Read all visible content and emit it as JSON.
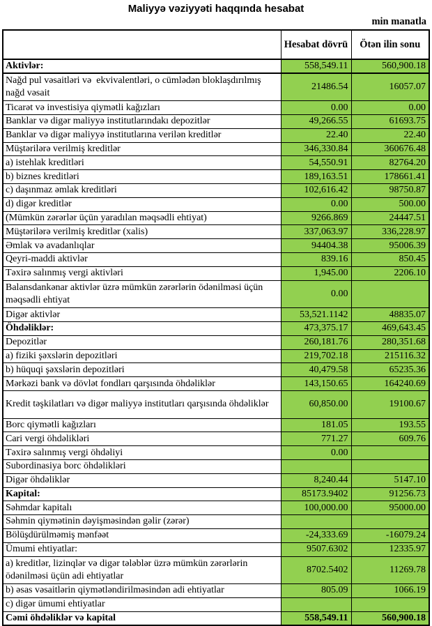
{
  "page": {
    "title": "Maliyyə vəziyyəti haqqında hesabat",
    "unit_note": "min manatla"
  },
  "table": {
    "columns": [
      "",
      "Hesabat dövrü",
      "Ötən ilin sonu"
    ],
    "colors": {
      "value_cell_bg": "#92d050",
      "border": "#000000"
    },
    "rows": [
      {
        "label": "Aktivlər:",
        "v1": "558,549.11",
        "v2": "560,900.18",
        "label_bold": true,
        "thick_bottom": true
      },
      {
        "label": "Nağd pul vəsaitləri və  ekvivalentləri, o cümlədən bloklaşdırılmış nağd vəsait",
        "v1": "21486.54",
        "v2": "16057.07",
        "tall": true
      },
      {
        "label": "Ticarət və investisiya qiymətli kağızları",
        "v1": "0.00",
        "v2": "0.00"
      },
      {
        "label": "Banklar və digər maliyyə institutlarındakı depozitlər",
        "v1": "49,266.55",
        "v2": "61693.75"
      },
      {
        "label": "Banklar və digər maliyyə institutlarına verilən kreditlər",
        "v1": "22.40",
        "v2": "22.40"
      },
      {
        "label": "Müştərilərə verilmiş kreditlər",
        "v1": "346,330.84",
        "v2": "360676.48"
      },
      {
        "label": "a) istehlak kreditləri",
        "v1": "54,550.91",
        "v2": "82764.20"
      },
      {
        "label": "b) biznes kreditləri",
        "v1": "189,163.51",
        "v2": "178661.41"
      },
      {
        "label": "c) daşınmaz əmlak kreditləri",
        "v1": "102,616.42",
        "v2": "98750.87"
      },
      {
        "label": "d) digər kreditlər",
        "v1": "0.00",
        "v2": "500.00"
      },
      {
        "label": "(Mümkün zərərlər üçün yaradılan məqsədli ehtiyat)",
        "v1": "9266.869",
        "v2": "24447.51"
      },
      {
        "label": "Müştərilərə verilmiş kreditlər (xalis)",
        "v1": "337,063.97",
        "v2": "336,228.97"
      },
      {
        "label": "Əmlak və avadanlıqlar",
        "v1": "94404.38",
        "v2": "95006.39"
      },
      {
        "label": "Qeyri-maddi aktivlər",
        "v1": "839.16",
        "v2": "850.45"
      },
      {
        "label": "Təxirə salınmış vergi aktivləri",
        "v1": "1,945.00",
        "v2": "2206.10"
      },
      {
        "label": "Balansdankənar aktivlər üzrə mümkün zərərlərin ödənilməsi üçün məqsədli ehtiyat",
        "v1": "0.00",
        "v2": "",
        "tall": true
      },
      {
        "label": "Digər aktivlər",
        "v1": "53,521.1142",
        "v2": "48835.07"
      },
      {
        "label": "Öhdəliklər:",
        "v1": "473,375.17",
        "v2": "469,643.45",
        "label_bold": true
      },
      {
        "label": "Depozitlər",
        "v1": "260,181.76",
        "v2": "280,351.68"
      },
      {
        "label": "a) fiziki şəxslərin depozitləri",
        "v1": "219,702.18",
        "v2": "215116.32"
      },
      {
        "label": "b) hüquqi şəxslərin depozitləri",
        "v1": "40,479.58",
        "v2": "65235.36"
      },
      {
        "label": "Mərkəzi bank və dövlət fondları qarşısında öhdəliklər",
        "v1": "143,150.65",
        "v2": "164240.69"
      },
      {
        "label": "Kredit təşkilatları və digər maliyyə institutları qarşısında öhdəliklər",
        "v1": "60,850.00",
        "v2": "19100.67",
        "tall": true
      },
      {
        "label": "Borc qiymətli kağızları",
        "v1": "181.05",
        "v2": "193.55"
      },
      {
        "label": "Cari vergi öhdəlikləri",
        "v1": "771.27",
        "v2": "609.76"
      },
      {
        "label": "Təxirə salınmış vergi öhdəliyi",
        "v1": "0.00",
        "v2": ""
      },
      {
        "label": "Subordinasiya borc öhdəlikləri",
        "v1": "",
        "v2": ""
      },
      {
        "label": "Digər öhdəliklər",
        "v1": "8,240.44",
        "v2": "5147.10"
      },
      {
        "label": "Kapital:",
        "v1": "85173.9402",
        "v2": "91256.73",
        "label_bold": true
      },
      {
        "label": "Səhmdar kapitalı",
        "v1": "100,000.00",
        "v2": "95000.00"
      },
      {
        "label": "Səhmin qiymətinin dəyişməsindən gəlir (zərər)",
        "v1": "",
        "v2": ""
      },
      {
        "label": "Bölüşdürülməmiş mənfəət",
        "v1": "-24,333.69",
        "v2": "-16079.24"
      },
      {
        "label": "Ümumi ehtiyatlar:",
        "v1": "9507.6302",
        "v2": "12335.97"
      },
      {
        "label": "a) kreditlər, lizinqlər və digər tələblər üzrə mümkün zərərlərin ödənilməsi üçün adi ehtiyatlar",
        "v1": "8702.5402",
        "v2": "11269.78",
        "tall": true
      },
      {
        "label": "b) əsas vəsaitlərin qiymətləndirilməsindən adi ehtiyatlar",
        "v1": "805.09",
        "v2": "1066.19"
      },
      {
        "label": "c) digər ümumi ehtiyatlar",
        "v1": "",
        "v2": ""
      },
      {
        "label": "Cəmi öhdəliklər və kapital",
        "v1": "558,549.11",
        "v2": "560,900.18",
        "label_bold": true,
        "values_bold": true
      }
    ]
  }
}
